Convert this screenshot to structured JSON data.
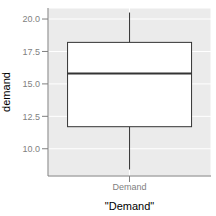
{
  "chart_data": {
    "type": "box",
    "categories": [
      "Demand"
    ],
    "boxes": [
      {
        "min": 8.4,
        "q1": 11.7,
        "median": 15.8,
        "q3": 18.2,
        "max": 20.5
      }
    ],
    "x_label": "\"Demand\"",
    "y_label": "demand",
    "ylim": [
      7.9,
      20.85
    ],
    "yticks": [
      {
        "value": 10,
        "label": "10.0"
      },
      {
        "value": 12.5,
        "label": "12.5"
      },
      {
        "value": 15,
        "label": "15.0"
      },
      {
        "value": 17.5,
        "label": "17.5"
      },
      {
        "value": 20,
        "label": "20.0"
      }
    ],
    "grid": true,
    "color": "#333333"
  }
}
